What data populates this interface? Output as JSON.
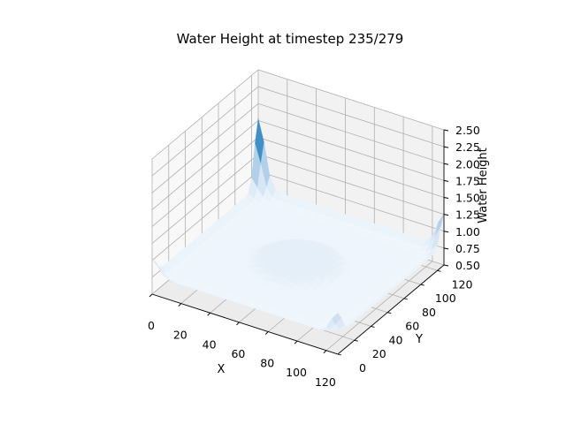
{
  "chart_data": {
    "type": "surface3d",
    "title": "Water Height at timestep 235/279",
    "xlabel": "X",
    "ylabel": "Y",
    "zlabel": "Water Height",
    "xlim": [
      0,
      128
    ],
    "ylim": [
      0,
      128
    ],
    "zlim": [
      0.5,
      2.5
    ],
    "xticks": [
      "0",
      "20",
      "40",
      "60",
      "80",
      "100",
      "120"
    ],
    "yticks": [
      "0",
      "20",
      "40",
      "60",
      "80",
      "100",
      "120"
    ],
    "zticks": [
      "0.50",
      "0.75",
      "1.00",
      "1.25",
      "1.50",
      "1.75",
      "2.00",
      "2.25",
      "2.50"
    ],
    "colormap": "Blues",
    "grid": true,
    "surface_features": {
      "base_height": 0.72,
      "central_plateau_height": 0.8,
      "corner_spikes": [
        {
          "x": 0,
          "y": 128,
          "height": 1.72
        },
        {
          "x": 128,
          "y": 0,
          "height": 1.05
        },
        {
          "x": 128,
          "y": 128,
          "height": 1.2
        },
        {
          "x": 0,
          "y": 0,
          "height": 0.95
        }
      ]
    }
  }
}
